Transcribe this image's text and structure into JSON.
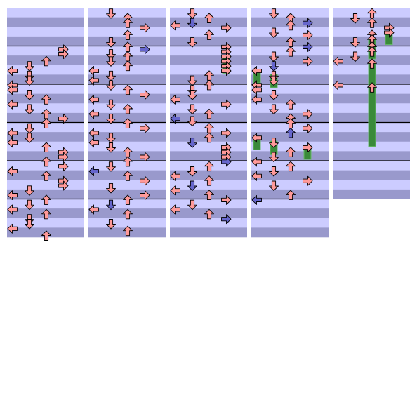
{
  "colors": {
    "background": "#ffffff",
    "row_light": "#ccccff",
    "row_dark": "#9999cc",
    "measure_line": "#000000",
    "arrow_red": "#ff9999",
    "arrow_blue": "#6666cc",
    "hold_body": "#3a8a3a",
    "hold_accent": "#66bb66",
    "arrow_outline": "#000000"
  },
  "lanes": [
    "left",
    "down",
    "up",
    "right"
  ],
  "columns": [
    {
      "measures": 6,
      "notes": [
        {
          "b": 4.0,
          "l": 3
        },
        {
          "b": 4.5,
          "l": 3
        },
        {
          "b": 5.25,
          "l": 2
        },
        {
          "b": 5.75,
          "l": 1
        },
        {
          "b": 6.25,
          "l": 0
        },
        {
          "b": 6.75,
          "l": 1
        },
        {
          "b": 7.25,
          "l": 1
        },
        {
          "b": 7.75,
          "l": 0
        },
        {
          "b": 8.25,
          "l": 0
        },
        {
          "b": 8.75,
          "l": 1
        },
        {
          "b": 9.25,
          "l": 2
        },
        {
          "b": 9.75,
          "l": 0
        },
        {
          "b": 10.25,
          "l": 1
        },
        {
          "b": 10.75,
          "l": 2
        },
        {
          "b": 11.25,
          "l": 3
        },
        {
          "b": 11.75,
          "l": 2
        },
        {
          "b": 12.25,
          "l": 1
        },
        {
          "b": 12.75,
          "l": 0
        },
        {
          "b": 13.25,
          "l": 1
        },
        {
          "b": 13.75,
          "l": 0
        },
        {
          "b": 14.25,
          "l": 2
        },
        {
          "b": 14.75,
          "l": 3
        },
        {
          "b": 15.25,
          "l": 3
        },
        {
          "b": 15.75,
          "l": 2
        },
        {
          "b": 16.25,
          "l": 3
        },
        {
          "b": 16.75,
          "l": 0
        },
        {
          "b": 17.25,
          "l": 2
        },
        {
          "b": 17.75,
          "l": 3
        },
        {
          "b": 18.25,
          "l": 3
        },
        {
          "b": 18.75,
          "l": 1
        },
        {
          "b": 19.25,
          "l": 0
        },
        {
          "b": 19.75,
          "l": 2
        },
        {
          "b": 20.25,
          "l": 1
        },
        {
          "b": 20.75,
          "l": 0
        },
        {
          "b": 21.25,
          "l": 2
        },
        {
          "b": 21.75,
          "l": 1
        },
        {
          "b": 22.25,
          "l": 1
        },
        {
          "b": 22.75,
          "l": 0
        },
        {
          "b": 23.5,
          "l": 2
        }
      ]
    },
    {
      "measures": 6,
      "notes": [
        {
          "b": 0.25,
          "l": 1
        },
        {
          "b": 0.75,
          "l": 2
        },
        {
          "b": 1.25,
          "l": 2
        },
        {
          "b": 1.75,
          "l": 3
        },
        {
          "b": 2.5,
          "l": 2
        },
        {
          "b": 3.25,
          "l": 1
        },
        {
          "b": 3.75,
          "l": 2
        },
        {
          "b": 4.0,
          "l": 3,
          "c": "blue"
        },
        {
          "b": 4.5,
          "l": 1
        },
        {
          "b": 4.75,
          "l": 2
        },
        {
          "b": 5.25,
          "l": 1
        },
        {
          "b": 5.75,
          "l": 2
        },
        {
          "b": 6.25,
          "l": 0
        },
        {
          "b": 6.75,
          "l": 1
        },
        {
          "b": 7.25,
          "l": 0
        },
        {
          "b": 7.75,
          "l": 1
        },
        {
          "b": 8.25,
          "l": 2
        },
        {
          "b": 8.75,
          "l": 3
        },
        {
          "b": 9.25,
          "l": 0
        },
        {
          "b": 9.75,
          "l": 1
        },
        {
          "b": 10.25,
          "l": 2
        },
        {
          "b": 10.75,
          "l": 0
        },
        {
          "b": 11.25,
          "l": 1
        },
        {
          "b": 11.75,
          "l": 2
        },
        {
          "b": 12.25,
          "l": 3
        },
        {
          "b": 12.75,
          "l": 0
        },
        {
          "b": 13.25,
          "l": 1
        },
        {
          "b": 13.75,
          "l": 0
        },
        {
          "b": 14.25,
          "l": 1
        },
        {
          "b": 14.75,
          "l": 2
        },
        {
          "b": 15.25,
          "l": 3
        },
        {
          "b": 15.75,
          "l": 2
        },
        {
          "b": 16.25,
          "l": 1
        },
        {
          "b": 16.75,
          "l": 0,
          "c": "blue"
        },
        {
          "b": 17.25,
          "l": 2
        },
        {
          "b": 17.75,
          "l": 3
        },
        {
          "b": 18.5,
          "l": 1
        },
        {
          "b": 19.25,
          "l": 3
        },
        {
          "b": 19.75,
          "l": 2
        },
        {
          "b": 20.25,
          "l": 1,
          "c": "blue"
        },
        {
          "b": 20.75,
          "l": 0
        },
        {
          "b": 21.25,
          "l": 2
        },
        {
          "b": 22.25,
          "l": 1
        },
        {
          "b": 23.0,
          "l": 2
        }
      ]
    },
    {
      "measures": 6,
      "notes": [
        {
          "b": 0.25,
          "l": 1
        },
        {
          "b": 0.75,
          "l": 2
        },
        {
          "b": 1.25,
          "l": 1,
          "c": "blue"
        },
        {
          "b": 1.5,
          "l": 0
        },
        {
          "b": 1.75,
          "l": 3
        },
        {
          "b": 2.5,
          "l": 2
        },
        {
          "b": 3.25,
          "l": 1
        },
        {
          "b": 3.75,
          "l": 3
        },
        {
          "b": 4.25,
          "l": 3
        },
        {
          "b": 4.75,
          "l": 3,
          "c": "hold"
        },
        {
          "b": 5.25,
          "l": 3,
          "c": "hold"
        },
        {
          "b": 5.75,
          "l": 3
        },
        {
          "b": 6.25,
          "l": 3
        },
        {
          "b": 6.75,
          "l": 2
        },
        {
          "b": 7.25,
          "l": 1
        },
        {
          "b": 7.75,
          "l": 2
        },
        {
          "b": 8.25,
          "l": 1
        },
        {
          "b": 8.75,
          "l": 1
        },
        {
          "b": 9.25,
          "l": 0
        },
        {
          "b": 9.75,
          "l": 3
        },
        {
          "b": 10.25,
          "l": 1
        },
        {
          "b": 10.75,
          "l": 2
        },
        {
          "b": 11.25,
          "l": 0,
          "c": "blue"
        },
        {
          "b": 11.5,
          "l": 1
        },
        {
          "b": 12.25,
          "l": 2
        },
        {
          "b": 12.75,
          "l": 3
        },
        {
          "b": 13.25,
          "l": 2
        },
        {
          "b": 13.75,
          "l": 1,
          "c": "blue"
        },
        {
          "b": 14.25,
          "l": 3
        },
        {
          "b": 14.75,
          "l": 3
        },
        {
          "b": 15.25,
          "l": 3
        },
        {
          "b": 15.75,
          "l": 3,
          "c": "blue"
        },
        {
          "b": 16.25,
          "l": 2
        },
        {
          "b": 16.75,
          "l": 1
        },
        {
          "b": 17.25,
          "l": 0
        },
        {
          "b": 17.75,
          "l": 2
        },
        {
          "b": 18.25,
          "l": 1,
          "c": "blue"
        },
        {
          "b": 18.75,
          "l": 0
        },
        {
          "b": 19.25,
          "l": 2
        },
        {
          "b": 19.75,
          "l": 3
        },
        {
          "b": 20.25,
          "l": 1
        },
        {
          "b": 20.75,
          "l": 0
        },
        {
          "b": 21.25,
          "l": 2
        },
        {
          "b": 21.75,
          "l": 3,
          "c": "blue"
        }
      ]
    },
    {
      "measures": 6,
      "notes": [
        {
          "b": 0.25,
          "l": 1
        },
        {
          "b": 0.75,
          "l": 2
        },
        {
          "b": 1.25,
          "l": 3,
          "c": "blue"
        },
        {
          "b": 1.5,
          "l": 2
        },
        {
          "b": 2.25,
          "l": 1
        },
        {
          "b": 2.5,
          "l": 3
        },
        {
          "b": 3.25,
          "l": 2
        },
        {
          "b": 3.75,
          "l": 3,
          "c": "blue"
        },
        {
          "b": 4.25,
          "l": 2
        },
        {
          "b": 4.75,
          "l": 1
        },
        {
          "b": 5.25,
          "l": 3
        },
        {
          "b": 5.75,
          "l": 1,
          "c": "blue"
        },
        {
          "b": 6.25,
          "l": 0,
          "c": "hold"
        },
        {
          "b": 6.75,
          "l": 1,
          "c": "hold"
        },
        {
          "b": 7.25,
          "l": 1
        },
        {
          "b": 7.75,
          "l": 0
        },
        {
          "b": 8.25,
          "l": 0
        },
        {
          "b": 8.75,
          "l": 1
        },
        {
          "b": 9.25,
          "l": 0
        },
        {
          "b": 9.75,
          "l": 2
        },
        {
          "b": 10.25,
          "l": 1
        },
        {
          "b": 10.75,
          "l": 3
        },
        {
          "b": 11.25,
          "l": 2
        },
        {
          "b": 11.75,
          "l": 2
        },
        {
          "b": 12.25,
          "l": 3
        },
        {
          "b": 12.75,
          "l": 2,
          "c": "blue"
        },
        {
          "b": 13.25,
          "l": 0,
          "c": "hold"
        },
        {
          "b": 13.75,
          "l": 1,
          "c": "hold"
        },
        {
          "b": 14.25,
          "l": 3,
          "c": "hold"
        },
        {
          "b": 14.75,
          "l": 2
        },
        {
          "b": 15.25,
          "l": 1
        },
        {
          "b": 15.75,
          "l": 0
        },
        {
          "b": 16.25,
          "l": 2
        },
        {
          "b": 16.75,
          "l": 1
        },
        {
          "b": 17.25,
          "l": 0
        },
        {
          "b": 17.75,
          "l": 3
        },
        {
          "b": 18.25,
          "l": 1
        },
        {
          "b": 19.25,
          "l": 2
        },
        {
          "b": 19.75,
          "l": 0,
          "c": "blue"
        }
      ]
    },
    {
      "measures": 5,
      "notes": [
        {
          "b": 0.25,
          "l": 2
        },
        {
          "b": 0.75,
          "l": 1
        },
        {
          "b": 1.25,
          "l": 2
        },
        {
          "b": 1.75,
          "l": 3
        },
        {
          "b": 2.25,
          "l": 3,
          "c": "hold"
        },
        {
          "b": 2.5,
          "l": 2
        },
        {
          "b": 3.0,
          "l": 2,
          "c": "hold"
        },
        {
          "b": 3.25,
          "l": 1
        },
        {
          "b": 3.75,
          "l": 2,
          "c": "hold"
        },
        {
          "b": 4.25,
          "l": 2
        },
        {
          "b": 4.75,
          "l": 1
        },
        {
          "b": 5.25,
          "l": 0
        },
        {
          "b": 5.5,
          "l": 2,
          "c": "hold",
          "len": 2.2
        },
        {
          "b": 7.75,
          "l": 0
        },
        {
          "b": 8.0,
          "l": 2
        }
      ]
    }
  ]
}
